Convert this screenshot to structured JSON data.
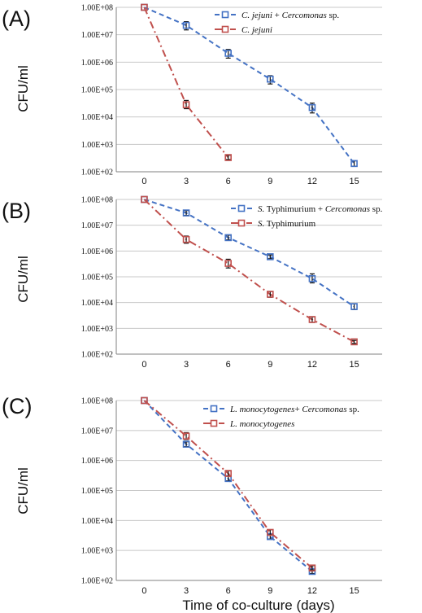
{
  "figure": {
    "shared_xlabel": "Time of co-culture (days)",
    "ylabel": "CFU/ml"
  },
  "colors": {
    "blue": "#4472c4",
    "red": "#c0504d",
    "grid": "#c8c8c8",
    "axis": "#808080",
    "error": "#111111"
  },
  "chart_data": [
    {
      "panel": "(A)",
      "type": "line",
      "yscale": "log",
      "ylim": [
        100,
        100000000
      ],
      "xlim": [
        -2,
        17
      ],
      "xticks": [
        0,
        3,
        6,
        9,
        12,
        15
      ],
      "yticks": [
        "1.00E+02",
        "1.00E+03",
        "1.00E+04",
        "1.00E+05",
        "1.00E+06",
        "1.00E+07",
        "1.00E+08"
      ],
      "ylabel": "CFU/ml",
      "grid": true,
      "legend_position": "top-right",
      "series": [
        {
          "name": "C. jejuni + Cercomonas sp.",
          "name_parts": [
            {
              "t": "C. jejuni",
              "i": true
            },
            {
              "t": " + ",
              "i": false
            },
            {
              "t": "Cercomonas",
              "i": true
            },
            {
              "t": " sp.",
              "i": false
            }
          ],
          "color": "blue",
          "dash": "dash",
          "x": [
            0,
            3,
            6,
            9,
            12,
            15
          ],
          "y": [
            100000000,
            22000000,
            2100000,
            240000,
            22000,
            200
          ],
          "err_low": [
            null,
            15000000,
            1400000,
            160000,
            14000,
            160
          ],
          "err_high": [
            null,
            30000000,
            2900000,
            320000,
            32000,
            250
          ]
        },
        {
          "name": "C. jejuni",
          "name_parts": [
            {
              "t": "C. jejuni",
              "i": true
            }
          ],
          "color": "red",
          "dash": "dashdot",
          "x": [
            0,
            3,
            6
          ],
          "y": [
            100000000,
            28000,
            330
          ],
          "err_low": [
            null,
            20000,
            280
          ],
          "err_high": [
            null,
            40000,
            400
          ]
        }
      ]
    },
    {
      "panel": "(B)",
      "type": "line",
      "yscale": "log",
      "ylim": [
        100,
        100000000
      ],
      "xlim": [
        -2,
        17
      ],
      "xticks": [
        0,
        3,
        6,
        9,
        12,
        15
      ],
      "yticks": [
        "1.00E+02",
        "1.00E+03",
        "1.00E+04",
        "1.00E+05",
        "1.00E+06",
        "1.00E+07",
        "1.00E+08"
      ],
      "ylabel": "CFU/ml",
      "grid": true,
      "legend_position": "top-right",
      "series": [
        {
          "name": "S. Typhimurium + Cercomonas sp.",
          "name_parts": [
            {
              "t": "S.",
              "i": true
            },
            {
              "t": " Typhimurium + ",
              "i": false
            },
            {
              "t": "Cercomonas",
              "i": true
            },
            {
              "t": " sp.",
              "i": false
            }
          ],
          "color": "blue",
          "dash": "dash",
          "x": [
            0,
            3,
            6,
            9,
            12,
            15
          ],
          "y": [
            100000000,
            30000000,
            3300000,
            600000,
            85000,
            7000
          ],
          "err_low": [
            null,
            24000000,
            2700000,
            500000,
            58000,
            5300
          ],
          "err_high": [
            null,
            37000000,
            4100000,
            700000,
            130000,
            9000
          ]
        },
        {
          "name": "S. Typhimurium",
          "name_parts": [
            {
              "t": "S.",
              "i": true
            },
            {
              "t": " Typhimurium",
              "i": false
            }
          ],
          "color": "red",
          "dash": "dashdot",
          "x": [
            0,
            3,
            6,
            9,
            12,
            15
          ],
          "y": [
            100000000,
            2800000,
            330000,
            21000,
            2200,
            300
          ],
          "err_low": [
            null,
            2000000,
            220000,
            16000,
            1700,
            260
          ],
          "err_high": [
            null,
            3800000,
            480000,
            27000,
            2800,
            340
          ]
        }
      ]
    },
    {
      "panel": "(C)",
      "type": "line",
      "yscale": "log",
      "ylim": [
        100,
        100000000
      ],
      "xlim": [
        -2,
        17
      ],
      "xticks": [
        0,
        3,
        6,
        9,
        12,
        15
      ],
      "yticks": [
        "1.00E+02",
        "1.00E+03",
        "1.00E+04",
        "1.00E+05",
        "1.00E+06",
        "1.00E+07",
        "1.00E+08"
      ],
      "xlabel": "Time of co-culture (days)",
      "ylabel": "CFU/ml",
      "grid": true,
      "legend_position": "top-right",
      "series": [
        {
          "name": "L. monocytogenes+ Cercomonas sp.",
          "name_parts": [
            {
              "t": "L. monocytogenes",
              "i": true
            },
            {
              "t": "+ ",
              "i": false
            },
            {
              "t": "Cercomonas",
              "i": true
            },
            {
              "t": " sp.",
              "i": false
            }
          ],
          "color": "blue",
          "dash": "dash",
          "x": [
            0,
            3,
            6,
            9,
            12
          ],
          "y": [
            100000000,
            3500000,
            250000,
            2900,
            200
          ],
          "err_low": [
            null,
            2900000,
            210000,
            2400,
            170
          ],
          "err_high": [
            null,
            4200000,
            300000,
            3500,
            240
          ]
        },
        {
          "name": "L. monocytogenes",
          "name_parts": [
            {
              "t": "L. monocytogenes",
              "i": true
            }
          ],
          "color": "red",
          "dash": "dashdot",
          "x": [
            0,
            3,
            6,
            9,
            12
          ],
          "y": [
            100000000,
            6500000,
            370000,
            4000,
            260
          ],
          "err_low": [
            null,
            5000000,
            300000,
            3300,
            220
          ],
          "err_high": [
            null,
            8500000,
            450000,
            4900,
            310
          ]
        }
      ]
    }
  ]
}
